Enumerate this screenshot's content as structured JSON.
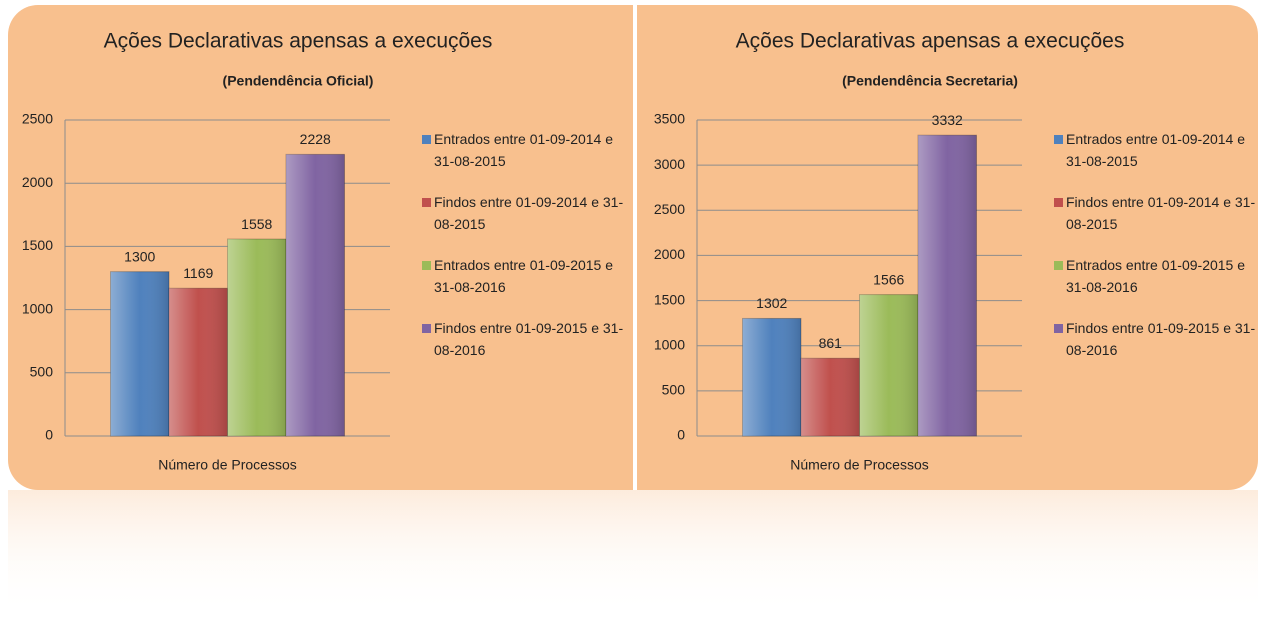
{
  "chart_data": [
    {
      "type": "bar",
      "title": "Ações Declarativas apensas a execuções",
      "subtitle": "(Pendendência Oficial)",
      "categories": [
        "Número de Processos"
      ],
      "series": [
        {
          "name": "Entrados entre 01-09-2014 e 31-08-2015",
          "color": "#4f81bd",
          "values": [
            1300
          ]
        },
        {
          "name": "Findos entre 01-09-2014 e 31-08-2015",
          "color": "#c0504d",
          "values": [
            1169
          ]
        },
        {
          "name": "Entrados entre 01-09-2015 e 31-08-2016",
          "color": "#9bbb59",
          "values": [
            1558
          ]
        },
        {
          "name": "Findos entre 01-09-2015 e 31-08-2016",
          "color": "#8064a2",
          "values": [
            2228
          ]
        }
      ],
      "ylim": [
        0,
        2500
      ],
      "yticks": [
        0,
        500,
        1000,
        1500,
        2000,
        2500
      ],
      "grid": true,
      "legend": "right"
    },
    {
      "type": "bar",
      "title": "Ações Declarativas apensas a execuções",
      "subtitle": "(Pendendência Secretaria)",
      "categories": [
        "Número de Processos"
      ],
      "series": [
        {
          "name": "Entrados entre 01-09-2014 e 31-08-2015",
          "color": "#4f81bd",
          "values": [
            1302
          ]
        },
        {
          "name": "Findos entre 01-09-2014 e 31-08-2015",
          "color": "#c0504d",
          "values": [
            861
          ]
        },
        {
          "name": "Entrados entre 01-09-2015 e 31-08-2016",
          "color": "#9bbb59",
          "values": [
            1566
          ]
        },
        {
          "name": "Findos entre 01-09-2015 e 31-08-2016",
          "color": "#8064a2",
          "values": [
            3332
          ]
        }
      ],
      "ylim": [
        0,
        3500
      ],
      "yticks": [
        0,
        500,
        1000,
        1500,
        2000,
        2500,
        3000,
        3500
      ],
      "grid": true,
      "legend": "right"
    }
  ]
}
